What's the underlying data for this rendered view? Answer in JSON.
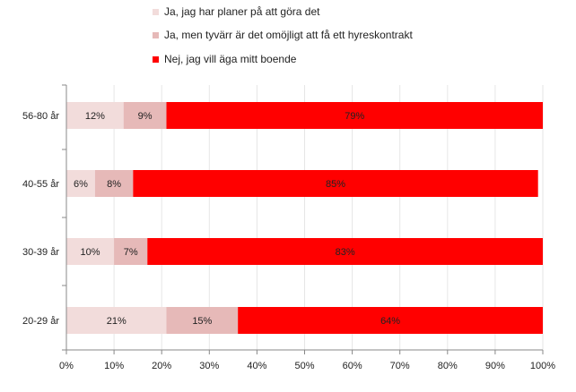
{
  "chart_data": {
    "type": "bar",
    "orientation": "horizontal",
    "stacked": true,
    "categories": [
      "56-80 år",
      "40-55 år",
      "30-39 år",
      "20-29 år"
    ],
    "series": [
      {
        "name": "Ja, jag har planer på att göra det",
        "values": [
          12,
          6,
          10,
          21
        ],
        "labels": [
          "12%",
          "6%",
          "10%",
          "21%"
        ],
        "color": "#f2dcdb"
      },
      {
        "name": "Ja, men tyvärr är det omöjligt att få ett hyreskontrakt",
        "values": [
          9,
          8,
          7,
          15
        ],
        "labels": [
          "9%",
          "8%",
          "7%",
          "15%"
        ],
        "color": "#e6b9b8"
      },
      {
        "name": "Nej, jag vill äga mitt boende",
        "values": [
          79,
          85,
          83,
          64
        ],
        "labels": [
          "79%",
          "85%",
          "83%",
          "64%"
        ],
        "color": "#ff0000"
      }
    ],
    "xlim": [
      0,
      100
    ],
    "xticks": [
      "0%",
      "10%",
      "20%",
      "30%",
      "40%",
      "50%",
      "60%",
      "70%",
      "80%",
      "90%",
      "100%"
    ],
    "grid": true,
    "legend_position": "top"
  }
}
